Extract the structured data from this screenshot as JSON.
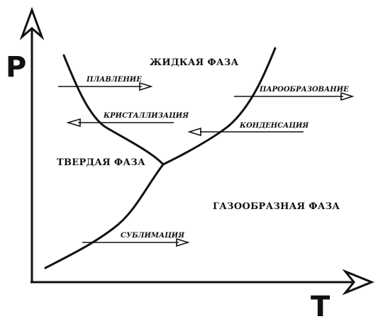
{
  "axes": {
    "y_label": "P",
    "x_label": "T"
  },
  "phases": {
    "liquid": "ЖИДКАЯ ФАЗА",
    "solid": "ТВЕРДАЯ ФАЗА",
    "gas": "ГАЗООБРАЗНАЯ ФАЗА"
  },
  "processes": {
    "melting": "ПЛАВЛЕНИЕ",
    "crystallization": "КРИСТАЛЛИЗАЦИЯ",
    "vaporization": "ПАРООБРАЗОВАНИЕ",
    "condensation": "КОНДЕНСАЦИЯ",
    "sublimation": "СУБЛИМАЦИЯ"
  }
}
